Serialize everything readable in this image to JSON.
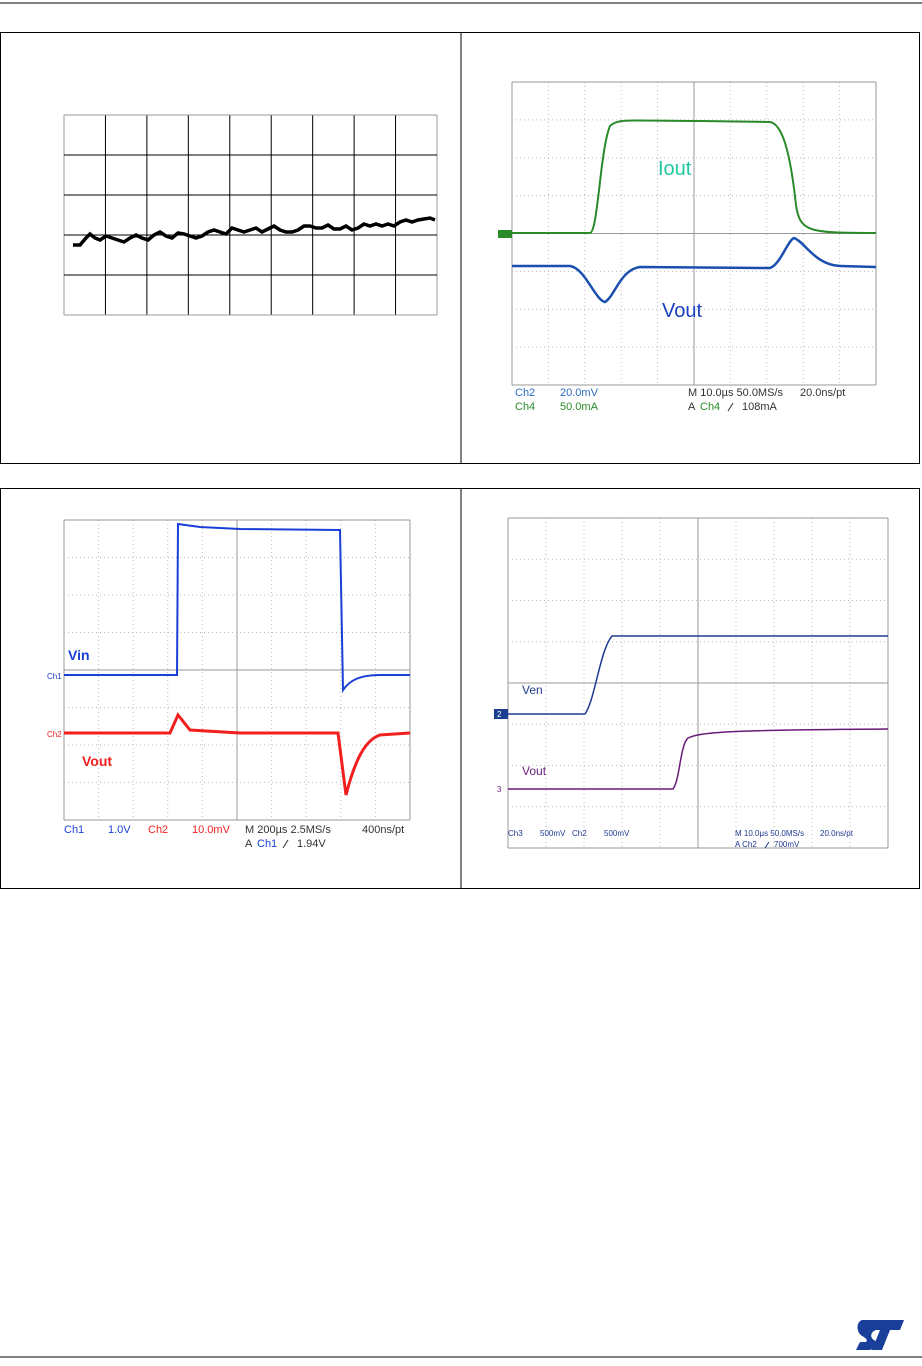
{
  "scope_load": {
    "trace_labels": [
      "Iout",
      "Vout"
    ],
    "readout": [
      "Ch2",
      "20.0mV",
      "Ch4",
      "50.0mA",
      "M 10.0µs 50.0MS/s",
      "20.0ns/pt",
      "A",
      "Ch4",
      "108mA"
    ]
  },
  "scope_line": {
    "channel_markers": [
      "Ch1",
      "Ch2"
    ],
    "trace_labels": [
      "Vin",
      "Vout"
    ],
    "readout": [
      "Ch1",
      "1.0V",
      "Ch2",
      "10.0mV",
      "M 200µs 2.5MS/s",
      "400ns/pt",
      "A",
      "Ch1",
      "1.94V"
    ]
  },
  "scope_enable": {
    "channel_markers": [
      "2",
      "3"
    ],
    "trace_labels": [
      "Ven",
      "Vout"
    ],
    "readout": [
      "Ch3",
      "500mV",
      "Ch2",
      "500mV",
      "M 10.0µs 50.0MS/s",
      "20.0ns/pt",
      "A Ch2",
      "700mV"
    ]
  }
}
